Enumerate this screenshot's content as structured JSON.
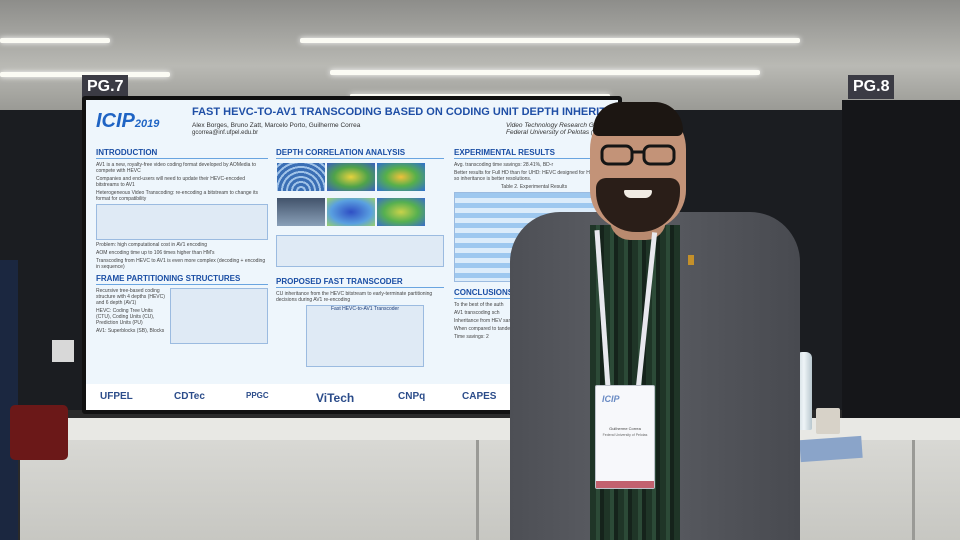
{
  "booth": {
    "left_label": "PG.7",
    "right_label": "PG.8"
  },
  "poster": {
    "logo": "ICIP",
    "logo_year": "2019",
    "title": "FAST HEVC-TO-AV1 TRANSCODING BASED ON CODING UNIT DEPTH INHERITAN",
    "authors": "Alex Borges, Bruno Zatt, Marcelo Porto, Guilherme Correa",
    "email": "gcorrea@inf.ufpel.edu.br",
    "group": "Video Technology Research Group (V",
    "university": "Federal University of Pelotas (UFPe",
    "sections": {
      "introduction": "INTRODUCTION",
      "frame_partitioning": "FRAME PARTITIONING STRUCTURES",
      "depth_correlation": "DEPTH CORRELATION ANALYSIS",
      "proposed": "PROPOSED FAST TRANSCODER",
      "experimental": "EXPERIMENTAL RESULTS",
      "conclusions": "CONCLUSIONS"
    },
    "bullets": {
      "intro_1": "AV1 is a new, royalty-free video coding format developed by AOMedia to compete with HEVC",
      "intro_2": "Companies and end-users will need to update their HEVC-encoded bitstreams to AV1",
      "intro_3": "Heterogeneous Video Transcoding: re-encoding a bitstream to change its format for compatibility",
      "intro_4": "Problem: high computational cost in AV1 encoding",
      "intro_5": "AOM encoding time up to 106 times higher than HM's",
      "intro_6": "Transcoding from HEVC to AV1 is even more complex (decoding + encoding in sequence)",
      "frame_1": "Recursive tree-based coding structure with 4 depths (HEVC) and 6 depth (AV1)",
      "frame_2": "HEVC: Coding Tree Units (CTU), Coding Units (CU), Prediction Units (PU)",
      "frame_3": "AV1: Superblocks (SB), Blocks",
      "proposed_1": "CU inheritance from the HEVC bitstream to early-terminate partitioning decisions during AV1 re-encoding",
      "proposed_fig": "Fast HEVC-to-AV1 Transcoder",
      "exp_1": "Avg. transcoding time savings: 28.41%, BD-r",
      "exp_2": "Better results for Full HD than for UHD: HEVC designed for HD-Full HD, so inheritance is better resolutions.",
      "exp_table": "Table 2. Experimental Results",
      "conc_1": "To the best of the auth",
      "conc_2": "AV1 transcoding sch",
      "conc_3": "Inheritance from HEV same video can be e",
      "conc_4": "When compared to tandem transcoder",
      "conc_5": "Time savings: 2"
    },
    "sponsors": [
      "UFPEL",
      "CDTec",
      "PPGC",
      "ViTech",
      "CNPq",
      "CAPES"
    ]
  },
  "badge": {
    "logo": "ICIP",
    "name": "Guilherme Correa",
    "affiliation": "Federal University of Pelotas"
  },
  "colors": {
    "poster_title": "#1f4fa6",
    "poster_bg": "#eef6fc",
    "booth_sign": "#3b3b44",
    "jacket": "#55575d"
  }
}
